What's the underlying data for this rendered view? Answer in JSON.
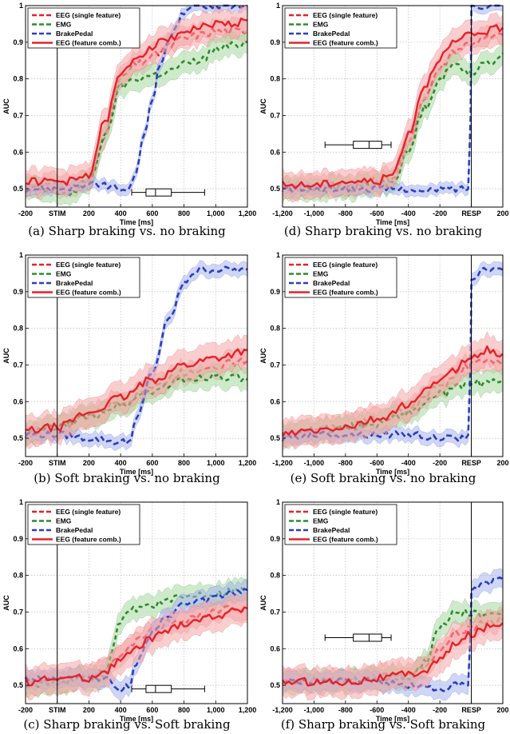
{
  "chart_data": [
    {
      "id": "a",
      "type": "line",
      "caption": "(a) Sharp braking vs. no braking",
      "xlabel": "Time [ms]",
      "ylabel": "AUC",
      "xlim": [
        -200,
        1200
      ],
      "ylim": [
        0.45,
        1.0
      ],
      "xtick_labels": [
        "-200",
        "STIM",
        "200",
        "400",
        "600",
        "800",
        "1,000",
        "1,200"
      ],
      "xtick_values": [
        -200,
        0,
        200,
        400,
        600,
        800,
        1000,
        1200
      ],
      "ytick_values": [
        0.5,
        0.6,
        0.7,
        0.8,
        0.9,
        1.0
      ],
      "ytick_labels": [
        "0.5",
        "0.6",
        "0.7",
        "0.8",
        "0.9",
        "1"
      ],
      "event_line": 0,
      "legend": [
        "EEG (single feature)",
        "EMG",
        "BrakePedal",
        "EEG (feature comb.)"
      ],
      "boxplot": {
        "whisker_low": 470,
        "q1": 560,
        "median": 620,
        "q3": 720,
        "whisker_high": 930,
        "y": 0.49
      },
      "series": [
        {
          "name": "EEG (single feature)",
          "x": [
            -200,
            0,
            100,
            200,
            300,
            400,
            500,
            600,
            700,
            800,
            900,
            1000,
            1100,
            1200
          ],
          "y": [
            0.51,
            0.51,
            0.51,
            0.52,
            0.65,
            0.8,
            0.84,
            0.86,
            0.89,
            0.91,
            0.92,
            0.93,
            0.93,
            0.93
          ],
          "band": 0.02
        },
        {
          "name": "EMG",
          "x": [
            -200,
            0,
            100,
            200,
            300,
            400,
            500,
            600,
            700,
            800,
            900,
            1000,
            1100,
            1200
          ],
          "y": [
            0.5,
            0.49,
            0.49,
            0.52,
            0.64,
            0.78,
            0.8,
            0.81,
            0.82,
            0.84,
            0.85,
            0.88,
            0.89,
            0.9
          ],
          "band": 0.02
        },
        {
          "name": "BrakePedal",
          "x": [
            -200,
            0,
            200,
            300,
            400,
            450,
            500,
            550,
            600,
            650,
            700,
            750,
            800,
            900,
            1000,
            1100,
            1200
          ],
          "y": [
            0.5,
            0.5,
            0.51,
            0.51,
            0.5,
            0.49,
            0.55,
            0.65,
            0.75,
            0.84,
            0.9,
            0.95,
            0.98,
            1.0,
            1.0,
            1.0,
            1.0
          ],
          "band": 0.005
        },
        {
          "name": "EEG (feature comb.)",
          "x": [
            -200,
            0,
            100,
            200,
            300,
            400,
            500,
            600,
            700,
            800,
            900,
            1000,
            1100,
            1200
          ],
          "y": [
            0.52,
            0.52,
            0.52,
            0.54,
            0.68,
            0.81,
            0.86,
            0.89,
            0.91,
            0.93,
            0.94,
            0.95,
            0.95,
            0.96
          ],
          "band": 0.025
        }
      ]
    },
    {
      "id": "d",
      "type": "line",
      "caption": "(d) Sharp braking vs. no braking",
      "xlabel": "Time [ms]",
      "ylabel": "AUC",
      "xlim": [
        -1200,
        200
      ],
      "ylim": [
        0.45,
        1.0
      ],
      "xtick_labels": [
        "-1,200",
        "-1,000",
        "-800",
        "-600",
        "-400",
        "-200",
        "RESP",
        "200"
      ],
      "xtick_values": [
        -1200,
        -1000,
        -800,
        -600,
        -400,
        -200,
        0,
        200
      ],
      "ytick_values": [
        0.5,
        0.6,
        0.7,
        0.8,
        0.9,
        1.0
      ],
      "ytick_labels": [
        "0.5",
        "0.6",
        "0.7",
        "0.8",
        "0.9",
        "1"
      ],
      "event_line": 0,
      "legend": [
        "EEG (single feature)",
        "EMG",
        "BrakePedal",
        "EEG (feature comb.)"
      ],
      "boxplot": {
        "whisker_low": -930,
        "q1": -750,
        "median": -650,
        "q3": -570,
        "whisker_high": -510,
        "y": 0.62
      },
      "series": [
        {
          "name": "EEG (single feature)",
          "x": [
            -1200,
            -1000,
            -800,
            -600,
            -500,
            -400,
            -300,
            -200,
            -100,
            0,
            100,
            200
          ],
          "y": [
            0.5,
            0.51,
            0.51,
            0.52,
            0.53,
            0.62,
            0.75,
            0.83,
            0.88,
            0.9,
            0.91,
            0.92
          ],
          "band": 0.02
        },
        {
          "name": "EMG",
          "x": [
            -1200,
            -1000,
            -800,
            -600,
            -500,
            -400,
            -300,
            -200,
            -100,
            0,
            100,
            200
          ],
          "y": [
            0.5,
            0.5,
            0.5,
            0.51,
            0.52,
            0.6,
            0.72,
            0.8,
            0.84,
            0.82,
            0.84,
            0.87
          ],
          "band": 0.02
        },
        {
          "name": "BrakePedal",
          "x": [
            -1200,
            -1000,
            -800,
            -600,
            -400,
            -300,
            -200,
            -100,
            -20,
            -5,
            0,
            100,
            200
          ],
          "y": [
            0.5,
            0.5,
            0.5,
            0.5,
            0.5,
            0.49,
            0.5,
            0.5,
            0.5,
            0.7,
            1.0,
            1.0,
            1.0
          ],
          "band": 0.005
        },
        {
          "name": "EEG (feature comb.)",
          "x": [
            -1200,
            -1000,
            -800,
            -600,
            -500,
            -400,
            -300,
            -200,
            -100,
            0,
            100,
            200
          ],
          "y": [
            0.51,
            0.51,
            0.52,
            0.52,
            0.54,
            0.65,
            0.78,
            0.86,
            0.9,
            0.92,
            0.93,
            0.94
          ],
          "band": 0.025
        }
      ]
    },
    {
      "id": "b",
      "type": "line",
      "caption": "(b) Soft braking vs. no braking",
      "xlabel": "Time [ms]",
      "ylabel": "AUC",
      "xlim": [
        -200,
        1200
      ],
      "ylim": [
        0.45,
        1.0
      ],
      "xtick_labels": [
        "-200",
        "STIM",
        "200",
        "400",
        "600",
        "800",
        "1,000",
        "1,200"
      ],
      "xtick_values": [
        -200,
        0,
        200,
        400,
        600,
        800,
        1000,
        1200
      ],
      "ytick_values": [
        0.5,
        0.6,
        0.7,
        0.8,
        0.9,
        1.0
      ],
      "ytick_labels": [
        "0.5",
        "0.6",
        "0.7",
        "0.8",
        "0.9",
        "1"
      ],
      "event_line": 0,
      "legend": [
        "EEG (single feature)",
        "EMG",
        "BrakePedal",
        "EEG (feature comb.)"
      ],
      "series": [
        {
          "name": "EEG (single feature)",
          "x": [
            -200,
            0,
            200,
            400,
            600,
            800,
            1000,
            1200
          ],
          "y": [
            0.51,
            0.53,
            0.56,
            0.6,
            0.64,
            0.68,
            0.7,
            0.71
          ],
          "band": 0.02
        },
        {
          "name": "EMG",
          "x": [
            -200,
            0,
            200,
            400,
            600,
            800,
            1000,
            1200
          ],
          "y": [
            0.51,
            0.53,
            0.56,
            0.59,
            0.63,
            0.66,
            0.67,
            0.66
          ],
          "band": 0.02
        },
        {
          "name": "BrakePedal",
          "x": [
            -200,
            0,
            200,
            400,
            450,
            500,
            600,
            700,
            800,
            850,
            900,
            1000,
            1200
          ],
          "y": [
            0.51,
            0.51,
            0.5,
            0.49,
            0.49,
            0.55,
            0.68,
            0.82,
            0.92,
            0.95,
            0.96,
            0.96,
            0.96
          ],
          "band": 0.008
        },
        {
          "name": "EEG (feature comb.)",
          "x": [
            -200,
            0,
            200,
            400,
            600,
            800,
            1000,
            1200
          ],
          "y": [
            0.52,
            0.53,
            0.57,
            0.61,
            0.66,
            0.7,
            0.72,
            0.74
          ],
          "band": 0.03
        }
      ]
    },
    {
      "id": "e",
      "type": "line",
      "caption": "(e) Soft braking vs. no braking",
      "xlabel": "Time [ms]",
      "ylabel": "AUC",
      "xlim": [
        -1200,
        200
      ],
      "ylim": [
        0.45,
        1.0
      ],
      "xtick_labels": [
        "-1,200",
        "-1,000",
        "-800",
        "-600",
        "-400",
        "-200",
        "RESP",
        "200"
      ],
      "xtick_values": [
        -1200,
        -1000,
        -800,
        -600,
        -400,
        -200,
        0,
        200
      ],
      "ytick_values": [
        0.5,
        0.6,
        0.7,
        0.8,
        0.9,
        1.0
      ],
      "ytick_labels": [
        "0.5",
        "0.6",
        "0.7",
        "0.8",
        "0.9",
        "1"
      ],
      "event_line": 0,
      "legend": [
        "EEG (single feature)",
        "EMG",
        "BrakePedal",
        "EEG (feature comb.)"
      ],
      "series": [
        {
          "name": "EEG (single feature)",
          "x": [
            -1200,
            -1000,
            -800,
            -600,
            -400,
            -200,
            0,
            100,
            200
          ],
          "y": [
            0.51,
            0.52,
            0.53,
            0.55,
            0.58,
            0.64,
            0.7,
            0.71,
            0.7
          ],
          "band": 0.02
        },
        {
          "name": "EMG",
          "x": [
            -1200,
            -1000,
            -800,
            -600,
            -400,
            -200,
            0,
            100,
            200
          ],
          "y": [
            0.51,
            0.52,
            0.53,
            0.54,
            0.57,
            0.62,
            0.65,
            0.65,
            0.66
          ],
          "band": 0.02
        },
        {
          "name": "BrakePedal",
          "x": [
            -1200,
            -1000,
            -800,
            -600,
            -400,
            -200,
            -20,
            -5,
            0,
            100,
            200
          ],
          "y": [
            0.5,
            0.51,
            0.51,
            0.51,
            0.51,
            0.5,
            0.5,
            0.7,
            0.94,
            0.96,
            0.96
          ],
          "band": 0.008
        },
        {
          "name": "EEG (feature comb.)",
          "x": [
            -1200,
            -1000,
            -800,
            -600,
            -400,
            -200,
            0,
            100,
            200
          ],
          "y": [
            0.51,
            0.52,
            0.53,
            0.55,
            0.59,
            0.66,
            0.72,
            0.74,
            0.73
          ],
          "band": 0.03
        }
      ]
    },
    {
      "id": "c",
      "type": "line",
      "caption": "(c) Sharp braking vs. Soft braking",
      "xlabel": "Time [ms]",
      "ylabel": "AUC",
      "xlim": [
        -200,
        1200
      ],
      "ylim": [
        0.45,
        1.0
      ],
      "xtick_labels": [
        "-200",
        "STIM",
        "200",
        "400",
        "600",
        "800",
        "1,000",
        "1,200"
      ],
      "xtick_values": [
        -200,
        0,
        200,
        400,
        600,
        800,
        1000,
        1200
      ],
      "ytick_values": [
        0.5,
        0.6,
        0.7,
        0.8,
        0.9,
        1.0
      ],
      "ytick_labels": [
        "0.5",
        "0.6",
        "0.7",
        "0.8",
        "0.9",
        "1"
      ],
      "event_line": 0,
      "legend": [
        "EEG (single feature)",
        "EMG",
        "BrakePedal",
        "EEG (feature comb.)"
      ],
      "boxplot": {
        "whisker_low": 470,
        "q1": 560,
        "median": 620,
        "q3": 720,
        "whisker_high": 930,
        "y": 0.49
      },
      "series": [
        {
          "name": "EEG (single feature)",
          "x": [
            -200,
            0,
            200,
            300,
            400,
            500,
            600,
            700,
            800,
            900,
            1000,
            1100,
            1200
          ],
          "y": [
            0.51,
            0.51,
            0.52,
            0.54,
            0.58,
            0.62,
            0.65,
            0.67,
            0.68,
            0.69,
            0.7,
            0.71,
            0.71
          ],
          "band": 0.02
        },
        {
          "name": "EMG",
          "x": [
            -200,
            0,
            200,
            300,
            350,
            400,
            500,
            600,
            700,
            800,
            900,
            1000,
            1100,
            1200
          ],
          "y": [
            0.5,
            0.51,
            0.52,
            0.52,
            0.6,
            0.68,
            0.71,
            0.72,
            0.73,
            0.74,
            0.75,
            0.75,
            0.76,
            0.76
          ],
          "band": 0.02
        },
        {
          "name": "BrakePedal",
          "x": [
            -200,
            0,
            200,
            300,
            400,
            450,
            500,
            600,
            700,
            800,
            900,
            1000,
            1100,
            1200
          ],
          "y": [
            0.52,
            0.52,
            0.52,
            0.52,
            0.49,
            0.5,
            0.56,
            0.64,
            0.69,
            0.72,
            0.73,
            0.74,
            0.75,
            0.76
          ],
          "band": 0.015
        },
        {
          "name": "EEG (feature comb.)",
          "x": [
            -200,
            0,
            200,
            300,
            400,
            500,
            600,
            700,
            800,
            900,
            1000,
            1100,
            1200
          ],
          "y": [
            0.51,
            0.52,
            0.52,
            0.54,
            0.57,
            0.6,
            0.63,
            0.65,
            0.67,
            0.68,
            0.69,
            0.7,
            0.71
          ],
          "band": 0.03
        }
      ]
    },
    {
      "id": "f",
      "type": "line",
      "caption": "(f) Sharp braking vs. Soft braking",
      "xlabel": "Time [ms]",
      "ylabel": "AUC",
      "xlim": [
        -1200,
        200
      ],
      "ylim": [
        0.45,
        1.0
      ],
      "xtick_labels": [
        "-1,200",
        "-1,000",
        "-800",
        "-600",
        "-400",
        "-200",
        "RESP",
        "200"
      ],
      "xtick_values": [
        -1200,
        -1000,
        -800,
        -600,
        -400,
        -200,
        0,
        200
      ],
      "ytick_values": [
        0.5,
        0.6,
        0.7,
        0.8,
        0.9,
        1.0
      ],
      "ytick_labels": [
        "0.5",
        "0.6",
        "0.7",
        "0.8",
        "0.9",
        "1"
      ],
      "event_line": 0,
      "legend": [
        "EEG (single feature)",
        "EMG",
        "BrakePedal",
        "EEG (feature comb.)"
      ],
      "boxplot": {
        "whisker_low": -930,
        "q1": -750,
        "median": -650,
        "q3": -570,
        "whisker_high": -510,
        "y": 0.63
      },
      "series": [
        {
          "name": "EEG (single feature)",
          "x": [
            -1200,
            -1000,
            -800,
            -600,
            -400,
            -300,
            -200,
            -100,
            0,
            100,
            200
          ],
          "y": [
            0.51,
            0.51,
            0.51,
            0.52,
            0.53,
            0.55,
            0.6,
            0.64,
            0.66,
            0.67,
            0.68
          ],
          "band": 0.02
        },
        {
          "name": "EMG",
          "x": [
            -1200,
            -1000,
            -800,
            -600,
            -400,
            -300,
            -200,
            -100,
            0,
            100,
            200
          ],
          "y": [
            0.51,
            0.51,
            0.51,
            0.52,
            0.52,
            0.56,
            0.66,
            0.7,
            0.7,
            0.69,
            0.7
          ],
          "band": 0.02
        },
        {
          "name": "BrakePedal",
          "x": [
            -1200,
            -1000,
            -800,
            -600,
            -400,
            -200,
            -100,
            -20,
            -5,
            0,
            100,
            200
          ],
          "y": [
            0.51,
            0.51,
            0.51,
            0.51,
            0.5,
            0.49,
            0.5,
            0.5,
            0.65,
            0.76,
            0.78,
            0.79
          ],
          "band": 0.015
        },
        {
          "name": "EEG (feature comb.)",
          "x": [
            -1200,
            -1000,
            -800,
            -600,
            -400,
            -300,
            -200,
            -100,
            0,
            100,
            200
          ],
          "y": [
            0.51,
            0.51,
            0.51,
            0.52,
            0.53,
            0.54,
            0.57,
            0.61,
            0.64,
            0.66,
            0.67
          ],
          "band": 0.03
        }
      ]
    }
  ],
  "colors": {
    "EEG (single feature)": "#e8202a",
    "EMG": "#2e8b2e",
    "BrakePedal": "#2a3fbf",
    "EEG (feature comb.)": "#e8202a"
  },
  "band_colors": {
    "EEG (single feature)": "#f4a6a6",
    "EMG": "#a8d8a0",
    "BrakePedal": "#a8b4ee",
    "EEG (feature comb.)": "#f4a6a6"
  }
}
